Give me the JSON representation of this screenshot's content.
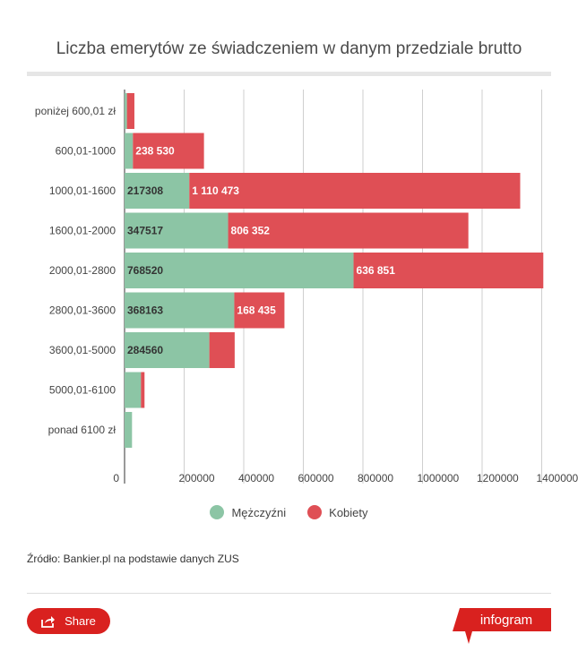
{
  "header": {
    "title": "Liczba emerytów ze świadczeniem w danym przedziale brutto"
  },
  "chart_data": {
    "type": "bar",
    "orientation": "horizontal",
    "stacked": true,
    "categories": [
      "poniżej 600,01 zł",
      "600,01-1000",
      "1000,01-1600",
      "1600,01-2000",
      "2000,01-2800",
      "2800,01-3600",
      "3600,01-5000",
      "5000,01-6100",
      "ponad 6100 zł"
    ],
    "series": [
      {
        "name": "Mężczyźni",
        "color": "#8cc5a5",
        "values": [
          8000,
          28000,
          217308,
          347517,
          768520,
          368163,
          284560,
          55000,
          25000
        ],
        "labels": [
          "",
          "",
          "217308",
          "347517",
          "768520",
          "368163",
          "284560",
          "",
          ""
        ]
      },
      {
        "name": "Kobiety",
        "color": "#df4f55",
        "values": [
          25000,
          238530,
          1110473,
          806352,
          636851,
          168435,
          85000,
          12000,
          0
        ],
        "labels": [
          "",
          "238 530",
          "1 110 473",
          "806 352",
          "636 851",
          "168 435",
          "",
          "",
          ""
        ]
      }
    ],
    "xlim": [
      0,
      1400000
    ],
    "x_ticks": [
      0,
      200000,
      400000,
      600000,
      800000,
      1000000,
      1200000,
      1400000
    ],
    "x_tick_labels": [
      "0",
      "200000",
      "400000",
      "600000",
      "800000",
      "1000000",
      "1200000",
      "1400000"
    ],
    "grid": true,
    "legend_position": "bottom"
  },
  "legend": {
    "items": [
      {
        "label": "Mężczyźni",
        "color": "#8cc5a5"
      },
      {
        "label": "Kobiety",
        "color": "#df4f55"
      }
    ]
  },
  "source": {
    "text": "Źródło: Bankier.pl na podstawie danych ZUS"
  },
  "footer": {
    "share_label": "Share",
    "share_icon": "share-icon",
    "brand_label": "infogram",
    "accent_color": "#d9211f"
  }
}
